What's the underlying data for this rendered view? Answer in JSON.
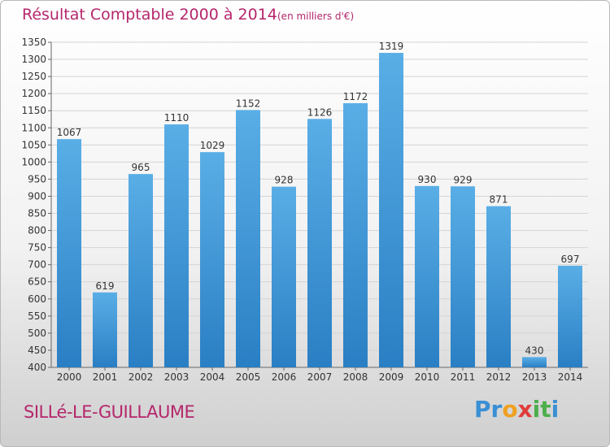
{
  "chart_data": {
    "type": "bar",
    "title": "Résultat Comptable 2000 à 2014",
    "subtitle": "(en milliers d'€)",
    "categories": [
      "2000",
      "2001",
      "2002",
      "2003",
      "2004",
      "2005",
      "2006",
      "2007",
      "2008",
      "2009",
      "2010",
      "2011",
      "2012",
      "2013",
      "2014"
    ],
    "values": [
      1067,
      619,
      965,
      1110,
      1029,
      1152,
      928,
      1126,
      1172,
      1319,
      930,
      929,
      871,
      430,
      697
    ],
    "ylim": [
      400,
      1350
    ],
    "yticks": [
      400,
      450,
      500,
      550,
      600,
      650,
      700,
      750,
      800,
      850,
      900,
      950,
      1000,
      1050,
      1100,
      1150,
      1200,
      1250,
      1300,
      1350
    ],
    "xlabel": "",
    "ylabel": "",
    "grid": true,
    "bar_color_top": "#5aaee6",
    "bar_color_bottom": "#2a7fc4"
  },
  "commune": "SILLé-LE-GUILLAUME",
  "logo": {
    "letters": [
      "P",
      "r",
      "o",
      "x",
      "i",
      "t",
      "i"
    ],
    "colors": [
      "#3a8fd4",
      "#3a8fd4",
      "#f0a020",
      "#e03c3c",
      "#4cae4c",
      "#4cae4c",
      "#3a8fd4"
    ]
  }
}
